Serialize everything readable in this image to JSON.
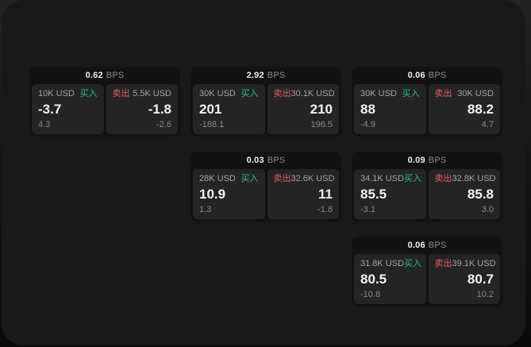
{
  "colors": {
    "background_gradient_top": "#232323",
    "background_gradient_bottom": "#0a0a0a",
    "panel_background": "#191919",
    "card_background": "#121213",
    "tile_background": "#242425",
    "buy_green": "#2ebd85",
    "sell_red": "#e25c6c",
    "primary_text": "#f2f2f2",
    "secondary_text": "#8a8a8a"
  },
  "cards": [
    {
      "bps": "0.62",
      "unit": "BPS",
      "buy": {
        "amount": "10K USD",
        "label": "买入",
        "value": "-3.7",
        "delta": "4.3"
      },
      "sell": {
        "label": "卖出",
        "amount": "5.5K USD",
        "value": "-1.8",
        "delta": "-2.6"
      }
    },
    {
      "bps": "2.92",
      "unit": "BPS",
      "buy": {
        "amount": "30K USD",
        "label": "买入",
        "value": "201",
        "delta": "-188.1"
      },
      "sell": {
        "label": "卖出",
        "amount": "30.1K USD",
        "value": "210",
        "delta": "196.5"
      }
    },
    {
      "bps": "0.06",
      "unit": "BPS",
      "buy": {
        "amount": "30K USD",
        "label": "买入",
        "value": "88",
        "delta": "-4.9"
      },
      "sell": {
        "label": "卖出",
        "amount": "30K USD",
        "value": "88.2",
        "delta": "4.7"
      }
    },
    {
      "bps": "0.03",
      "unit": "BPS",
      "buy": {
        "amount": "28K USD",
        "label": "买入",
        "value": "10.9",
        "delta": "1.3"
      },
      "sell": {
        "label": "卖出",
        "amount": "32.6K USD",
        "value": "11",
        "delta": "-1.8"
      }
    },
    {
      "bps": "0.09",
      "unit": "BPS",
      "buy": {
        "amount": "34.1K USD",
        "label": "买入",
        "value": "85.5",
        "delta": "-3.1"
      },
      "sell": {
        "label": "卖出",
        "amount": "32.8K USD",
        "value": "85.8",
        "delta": "3.0"
      }
    },
    {
      "bps": "0.06",
      "unit": "BPS",
      "buy": {
        "amount": "31.8K USD",
        "label": "买入",
        "value": "80.5",
        "delta": "-10.8"
      },
      "sell": {
        "label": "卖出",
        "amount": "39.1K USD",
        "value": "80.7",
        "delta": "10.2"
      }
    }
  ]
}
